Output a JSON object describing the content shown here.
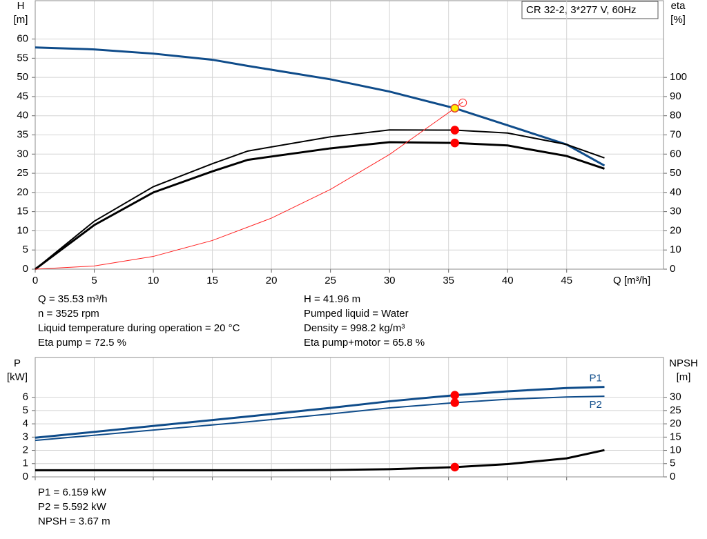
{
  "chart_data": [
    {
      "type": "line",
      "title": "CR 32-2, 3*277 V, 60Hz",
      "ylabel": "H",
      "yunit": "[m]",
      "y2label": "eta",
      "y2unit": "[%]",
      "xlabel": "Q [m³/h]",
      "xlim": [
        0,
        53.2
      ],
      "xticks": [
        0,
        5,
        10,
        15,
        20,
        25,
        30,
        35,
        40,
        45
      ],
      "ylim": [
        0,
        70
      ],
      "yticks": [
        0,
        5,
        10,
        15,
        20,
        25,
        30,
        35,
        40,
        45,
        50,
        55,
        60
      ],
      "y2lim": [
        0,
        140
      ],
      "y2ticks": [
        0,
        10,
        20,
        30,
        40,
        50,
        60,
        70,
        80,
        90,
        100
      ],
      "grid": true,
      "series": [
        {
          "color": "#0f4c8a",
          "line_width": 3,
          "x": [
            0,
            5,
            10,
            15,
            18,
            25,
            30,
            35.53,
            40,
            45,
            48.2
          ],
          "values": [
            57.8,
            57.3,
            56.2,
            54.6,
            53.0,
            49.5,
            46.3,
            41.96,
            37.5,
            32.5,
            27.0
          ]
        },
        {
          "color": "#000000",
          "line_width": 2,
          "axis": "y2",
          "x": [
            0,
            5,
            10,
            15,
            18,
            25,
            30,
            35.53,
            40,
            45,
            48.2
          ],
          "values": [
            0,
            25,
            43,
            55,
            61.6,
            69,
            72.6,
            72.5,
            71,
            65,
            58
          ]
        },
        {
          "color": "#000000",
          "line_width": 3,
          "axis": "y2",
          "x": [
            0,
            5,
            10,
            15,
            18,
            25,
            30,
            35.53,
            40,
            45,
            48.2
          ],
          "values": [
            0,
            23,
            40,
            51,
            57,
            63,
            66.2,
            65.8,
            64.5,
            59,
            52.4
          ]
        },
        {
          "color": "#ff2020",
          "line_width": 1,
          "x": [
            0,
            5,
            10,
            15,
            20,
            25,
            30,
            35.53,
            36.2
          ],
          "values": [
            0,
            0.83,
            3.32,
            7.48,
            13.3,
            20.8,
            29.9,
            41.96,
            43.6
          ]
        }
      ],
      "markers": [
        {
          "x": 36.2,
          "y": 43.4,
          "color": "#ff2020",
          "filled": false
        },
        {
          "x": 35.53,
          "y": 72.5,
          "axis": "y2",
          "color": "#ff0000",
          "filled": true
        },
        {
          "x": 35.53,
          "y": 65.8,
          "axis": "y2",
          "color": "#ff0000",
          "filled": true
        },
        {
          "x": 35.53,
          "y": 41.96,
          "color": "#ffee00",
          "filled": true
        }
      ],
      "info": [
        [
          "Q = 35.53 m³/h",
          "n = 3525 rpm",
          "Liquid temperature during operation = 20 °C",
          "Eta pump = 72.5 %"
        ],
        [
          "H = 41.96 m",
          "Pumped liquid = Water",
          "Density = 998.2 kg/m³",
          "Eta pump+motor = 65.8 %"
        ]
      ]
    },
    {
      "type": "line",
      "ylabel": "P",
      "yunit": "[kW]",
      "y2label": "NPSH",
      "y2unit": "[m]",
      "xlim": [
        0,
        53.2
      ],
      "xticks": [
        0,
        5,
        10,
        15,
        20,
        25,
        30,
        35,
        40,
        45
      ],
      "ylim": [
        0,
        9
      ],
      "yticks": [
        0,
        1,
        2,
        3,
        4,
        5,
        6
      ],
      "y2lim": [
        0,
        45
      ],
      "y2ticks": [
        0,
        5,
        10,
        15,
        20,
        25,
        30
      ],
      "grid": true,
      "series": [
        {
          "name": "P1",
          "color": "#0f4c8a",
          "line_width": 3,
          "x": [
            0,
            18,
            25,
            30,
            35.53,
            40,
            45,
            48.2
          ],
          "values": [
            2.95,
            4.55,
            5.2,
            5.7,
            6.159,
            6.45,
            6.7,
            6.78
          ]
        },
        {
          "name": "P2",
          "color": "#0f4c8a",
          "line_width": 2,
          "x": [
            0,
            18,
            25,
            30,
            35.53,
            40,
            45,
            48.2
          ],
          "values": [
            2.75,
            4.15,
            4.75,
            5.2,
            5.592,
            5.85,
            6.02,
            6.08
          ]
        },
        {
          "color": "#000000",
          "line_width": 3,
          "axis": "y2",
          "x": [
            0,
            18,
            25,
            30,
            35.53,
            40,
            45,
            48.2
          ],
          "values": [
            2.5,
            2.5,
            2.6,
            2.9,
            3.67,
            4.8,
            7.0,
            10.1
          ]
        }
      ],
      "markers": [
        {
          "x": 35.53,
          "y": 6.159,
          "color": "#ff0000",
          "filled": true
        },
        {
          "x": 35.53,
          "y": 5.592,
          "color": "#ff0000",
          "filled": true
        },
        {
          "x": 35.53,
          "y": 3.67,
          "axis": "y2",
          "color": "#ff0000",
          "filled": true
        }
      ],
      "info": [
        "P1 = 6.159 kW",
        "P2 = 5.592 kW",
        "NPSH = 3.67 m"
      ]
    }
  ]
}
